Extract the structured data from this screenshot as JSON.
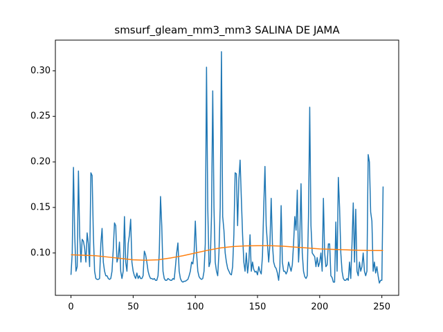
{
  "chart_data": {
    "type": "line",
    "title": "smsurf_gleam_mm3_mm3 SALINA DE JAMA",
    "xlim": [
      -12.55,
      263.55
    ],
    "xticks": [
      0,
      50,
      100,
      150,
      200,
      250
    ],
    "ylim": [
      0.0535,
      0.3337
    ],
    "yticks": [
      {
        "value": 0.1,
        "label": "0.10"
      },
      0.15,
      {
        "value": 0.2,
        "label": "0.20"
      },
      0.25,
      {
        "value": 0.3,
        "label": "0.30"
      }
    ],
    "series": [
      {
        "color": "#1f77b4",
        "x": [
          0,
          1,
          2,
          3,
          4,
          5,
          6,
          7,
          8,
          9,
          10,
          11,
          12,
          13,
          14,
          15,
          16,
          17,
          18,
          19,
          20,
          21,
          22,
          23,
          24,
          25,
          26,
          27,
          28,
          29,
          30,
          31,
          32,
          33,
          34,
          35,
          36,
          37,
          38,
          39,
          40,
          41,
          42,
          43,
          44,
          45,
          46,
          47,
          48,
          49,
          50,
          51,
          52,
          53,
          54,
          55,
          56,
          57,
          58,
          59,
          60,
          61,
          62,
          63,
          64,
          65,
          66,
          67,
          68,
          69,
          70,
          71,
          72,
          73,
          74,
          75,
          76,
          77,
          78,
          79,
          80,
          81,
          82,
          83,
          84,
          85,
          86,
          87,
          88,
          89,
          90,
          91,
          92,
          93,
          94,
          95,
          96,
          97,
          98,
          99,
          100,
          101,
          102,
          103,
          104,
          105,
          106,
          107,
          108,
          109,
          110,
          111,
          112,
          113,
          114,
          115,
          116,
          117,
          118,
          119,
          120,
          121,
          122,
          123,
          124,
          125,
          126,
          127,
          128,
          129,
          130,
          131,
          132,
          133,
          134,
          135,
          136,
          137,
          138,
          139,
          140,
          141,
          142,
          143,
          144,
          145,
          146,
          147,
          148,
          149,
          150,
          151,
          152,
          153,
          154,
          155,
          156,
          157,
          158,
          159,
          160,
          161,
          162,
          163,
          164,
          165,
          166,
          167,
          168,
          169,
          170,
          171,
          172,
          173,
          174,
          175,
          176,
          177,
          178,
          179,
          180,
          181,
          182,
          183,
          184,
          185,
          186,
          187,
          188,
          189,
          190,
          191,
          192,
          193,
          194,
          195,
          196,
          197,
          198,
          199,
          200,
          201,
          202,
          203,
          204,
          205,
          206,
          207,
          208,
          209,
          210,
          211,
          212,
          213,
          214,
          215,
          216,
          217,
          218,
          219,
          220,
          221,
          222,
          223,
          224,
          225,
          226,
          227,
          228,
          229,
          230,
          231,
          232,
          233,
          234,
          235,
          236,
          237,
          238,
          239,
          240,
          241,
          242,
          243,
          244,
          245,
          246,
          247,
          248,
          249,
          250,
          251
        ],
        "values": [
          0.076,
          0.1,
          0.194,
          0.12,
          0.08,
          0.085,
          0.19,
          0.12,
          0.09,
          0.115,
          0.113,
          0.105,
          0.09,
          0.122,
          0.11,
          0.085,
          0.188,
          0.185,
          0.12,
          0.08,
          0.072,
          0.071,
          0.071,
          0.072,
          0.11,
          0.127,
          0.09,
          0.08,
          0.075,
          0.075,
          0.072,
          0.071,
          0.072,
          0.08,
          0.104,
          0.133,
          0.13,
          0.09,
          0.095,
          0.112,
          0.08,
          0.072,
          0.08,
          0.14,
          0.09,
          0.08,
          0.11,
          0.12,
          0.137,
          0.09,
          0.08,
          0.075,
          0.072,
          0.078,
          0.072,
          0.075,
          0.072,
          0.072,
          0.075,
          0.102,
          0.098,
          0.09,
          0.08,
          0.075,
          0.072,
          0.072,
          0.071,
          0.072,
          0.07,
          0.07,
          0.075,
          0.1,
          0.162,
          0.13,
          0.08,
          0.072,
          0.07,
          0.07,
          0.072,
          0.071,
          0.07,
          0.07,
          0.072,
          0.071,
          0.085,
          0.1,
          0.111,
          0.08,
          0.072,
          0.069,
          0.068,
          0.069,
          0.069,
          0.07,
          0.071,
          0.075,
          0.08,
          0.09,
          0.088,
          0.1,
          0.135,
          0.1,
          0.08,
          0.074,
          0.072,
          0.071,
          0.072,
          0.08,
          0.11,
          0.304,
          0.15,
          0.085,
          0.09,
          0.14,
          0.278,
          0.15,
          0.09,
          0.08,
          0.075,
          0.1,
          0.15,
          0.321,
          0.14,
          0.125,
          0.1,
          0.09,
          0.083,
          0.08,
          0.077,
          0.076,
          0.085,
          0.12,
          0.188,
          0.187,
          0.13,
          0.18,
          0.202,
          0.16,
          0.12,
          0.09,
          0.08,
          0.1,
          0.078,
          0.09,
          0.12,
          0.08,
          0.09,
          0.082,
          0.079,
          0.08,
          0.076,
          0.085,
          0.08,
          0.077,
          0.097,
          0.15,
          0.195,
          0.13,
          0.11,
          0.09,
          0.11,
          0.16,
          0.11,
          0.09,
          0.085,
          0.083,
          0.078,
          0.07,
          0.085,
          0.152,
          0.09,
          0.08,
          0.08,
          0.077,
          0.08,
          0.09,
          0.085,
          0.08,
          0.087,
          0.11,
          0.14,
          0.125,
          0.169,
          0.09,
          0.116,
          0.176,
          0.1,
          0.08,
          0.074,
          0.072,
          0.075,
          0.14,
          0.26,
          0.13,
          0.1,
          0.098,
          0.096,
          0.085,
          0.095,
          0.085,
          0.09,
          0.1,
          0.08,
          0.16,
          0.1,
          0.085,
          0.087,
          0.11,
          0.11,
          0.075,
          0.073,
          0.068,
          0.068,
          0.134,
          0.08,
          0.183,
          0.15,
          0.1,
          0.08,
          0.072,
          0.07,
          0.07,
          0.072,
          0.07,
          0.09,
          0.072,
          0.11,
          0.155,
          0.09,
          0.148,
          0.08,
          0.075,
          0.09,
          0.08,
          0.085,
          0.1,
          0.08,
          0.075,
          0.08,
          0.208,
          0.2,
          0.145,
          0.135,
          0.08,
          0.09,
          0.078,
          0.085,
          0.075,
          0.067,
          0.07,
          0.07,
          0.173
        ]
      },
      {
        "color": "#ff7f0e",
        "x": [
          0,
          10,
          20,
          30,
          40,
          50,
          60,
          70,
          80,
          90,
          100,
          110,
          120,
          130,
          140,
          150,
          160,
          170,
          180,
          190,
          200,
          210,
          220,
          230,
          240,
          251
        ],
        "values": [
          0.098,
          0.0975,
          0.097,
          0.0955,
          0.094,
          0.0925,
          0.092,
          0.0925,
          0.0945,
          0.097,
          0.1,
          0.103,
          0.1055,
          0.107,
          0.1078,
          0.108,
          0.108,
          0.1075,
          0.1065,
          0.1055,
          0.1045,
          0.104,
          0.1035,
          0.103,
          0.1028,
          0.1027
        ]
      }
    ]
  }
}
